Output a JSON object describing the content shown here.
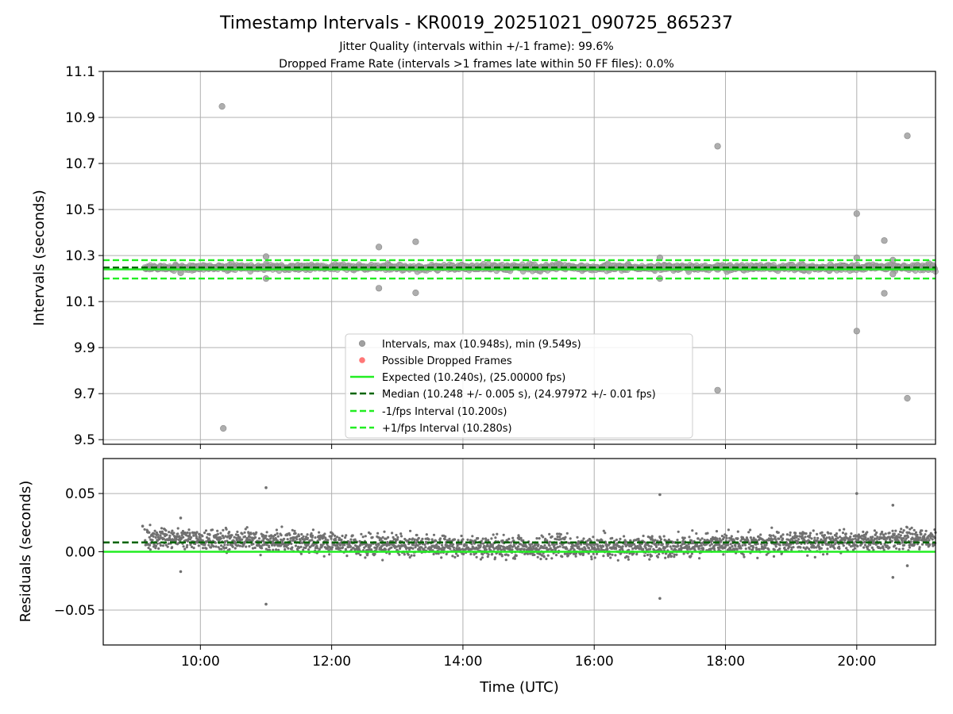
{
  "title": "Timestamp Intervals - KR0019_20251021_090725_865237",
  "subtitle_line1": "Jitter Quality (intervals within +/-1 frame): 99.6%",
  "subtitle_line2": "Dropped Frame Rate (intervals >1 frames late within 50 FF files): 0.0%",
  "colors": {
    "points": "#a0a0a0",
    "residual_points": "#707070",
    "dropped": "#ff5555",
    "expected": "#22ee22",
    "median": "#006400",
    "bounds": "#22ee22",
    "grid": "#b0b0b0"
  },
  "legend": {
    "intervals": "Intervals, max (10.948s), min (9.549s)",
    "dropped": "Possible Dropped Frames",
    "expected": "Expected (10.240s), (25.00000 fps)",
    "median": "Median (10.248 +/- 0.005 s), (24.97972 +/- 0.01 fps)",
    "lower": "-1/fps Interval (10.200s)",
    "upper": "+1/fps Interval (10.280s)"
  },
  "chart_data": [
    {
      "type": "scatter",
      "ylabel": "Intervals (seconds)",
      "x_unit": "hours UTC",
      "xlim": [
        8.52,
        21.2
      ],
      "ylim": [
        9.48,
        11.1
      ],
      "yticks": [
        "11.1",
        "10.9",
        "10.7",
        "10.5",
        "10.3",
        "10.1",
        "9.9",
        "9.7",
        "9.5"
      ],
      "grid": true,
      "legend_position": "lower-center",
      "data_range": {
        "start": 9.15,
        "end": 21.2,
        "center": 10.248,
        "spread": 0.012
      },
      "outliers": [
        {
          "x": 10.33,
          "y": 10.948
        },
        {
          "x": 10.35,
          "y": 9.549
        },
        {
          "x": 11.0,
          "y": 10.295
        },
        {
          "x": 11.0,
          "y": 10.2
        },
        {
          "x": 12.72,
          "y": 10.337
        },
        {
          "x": 12.72,
          "y": 10.158
        },
        {
          "x": 13.28,
          "y": 10.36
        },
        {
          "x": 13.28,
          "y": 10.138
        },
        {
          "x": 17.0,
          "y": 10.29
        },
        {
          "x": 17.0,
          "y": 10.2
        },
        {
          "x": 17.88,
          "y": 10.775
        },
        {
          "x": 17.88,
          "y": 9.715
        },
        {
          "x": 20.0,
          "y": 10.482
        },
        {
          "x": 20.0,
          "y": 9.972
        },
        {
          "x": 20.0,
          "y": 10.29
        },
        {
          "x": 20.42,
          "y": 10.365
        },
        {
          "x": 20.42,
          "y": 10.136
        },
        {
          "x": 20.55,
          "y": 10.28
        },
        {
          "x": 20.55,
          "y": 10.22
        },
        {
          "x": 20.77,
          "y": 10.82
        },
        {
          "x": 20.77,
          "y": 9.68
        },
        {
          "x": 9.7,
          "y": 10.225
        }
      ],
      "lines": {
        "expected": 10.24,
        "median": 10.248,
        "lower": 10.2,
        "upper": 10.28
      }
    },
    {
      "type": "scatter",
      "xlabel": "Time (UTC)",
      "ylabel": "Residuals (seconds)",
      "x_unit": "hours UTC",
      "xlim": [
        8.52,
        21.2
      ],
      "ylim": [
        -0.08,
        0.08
      ],
      "yticks": [
        "0.05",
        "0.00",
        "−0.05"
      ],
      "xticks": [
        "10:00",
        "12:00",
        "14:00",
        "16:00",
        "18:00",
        "20:00"
      ],
      "grid": true,
      "data_range": {
        "start": 9.15,
        "end": 21.2
      },
      "outliers": [
        {
          "x": 9.12,
          "y": 0.022
        },
        {
          "x": 9.7,
          "y": 0.029
        },
        {
          "x": 9.7,
          "y": -0.017
        },
        {
          "x": 11.0,
          "y": 0.055
        },
        {
          "x": 11.0,
          "y": -0.045
        },
        {
          "x": 17.0,
          "y": 0.049
        },
        {
          "x": 17.0,
          "y": -0.04
        },
        {
          "x": 20.0,
          "y": 0.05
        },
        {
          "x": 20.55,
          "y": 0.04
        },
        {
          "x": 20.55,
          "y": -0.022
        },
        {
          "x": 20.77,
          "y": -0.012
        }
      ],
      "lines": {
        "expected": 0.0,
        "median": 0.008
      }
    }
  ]
}
